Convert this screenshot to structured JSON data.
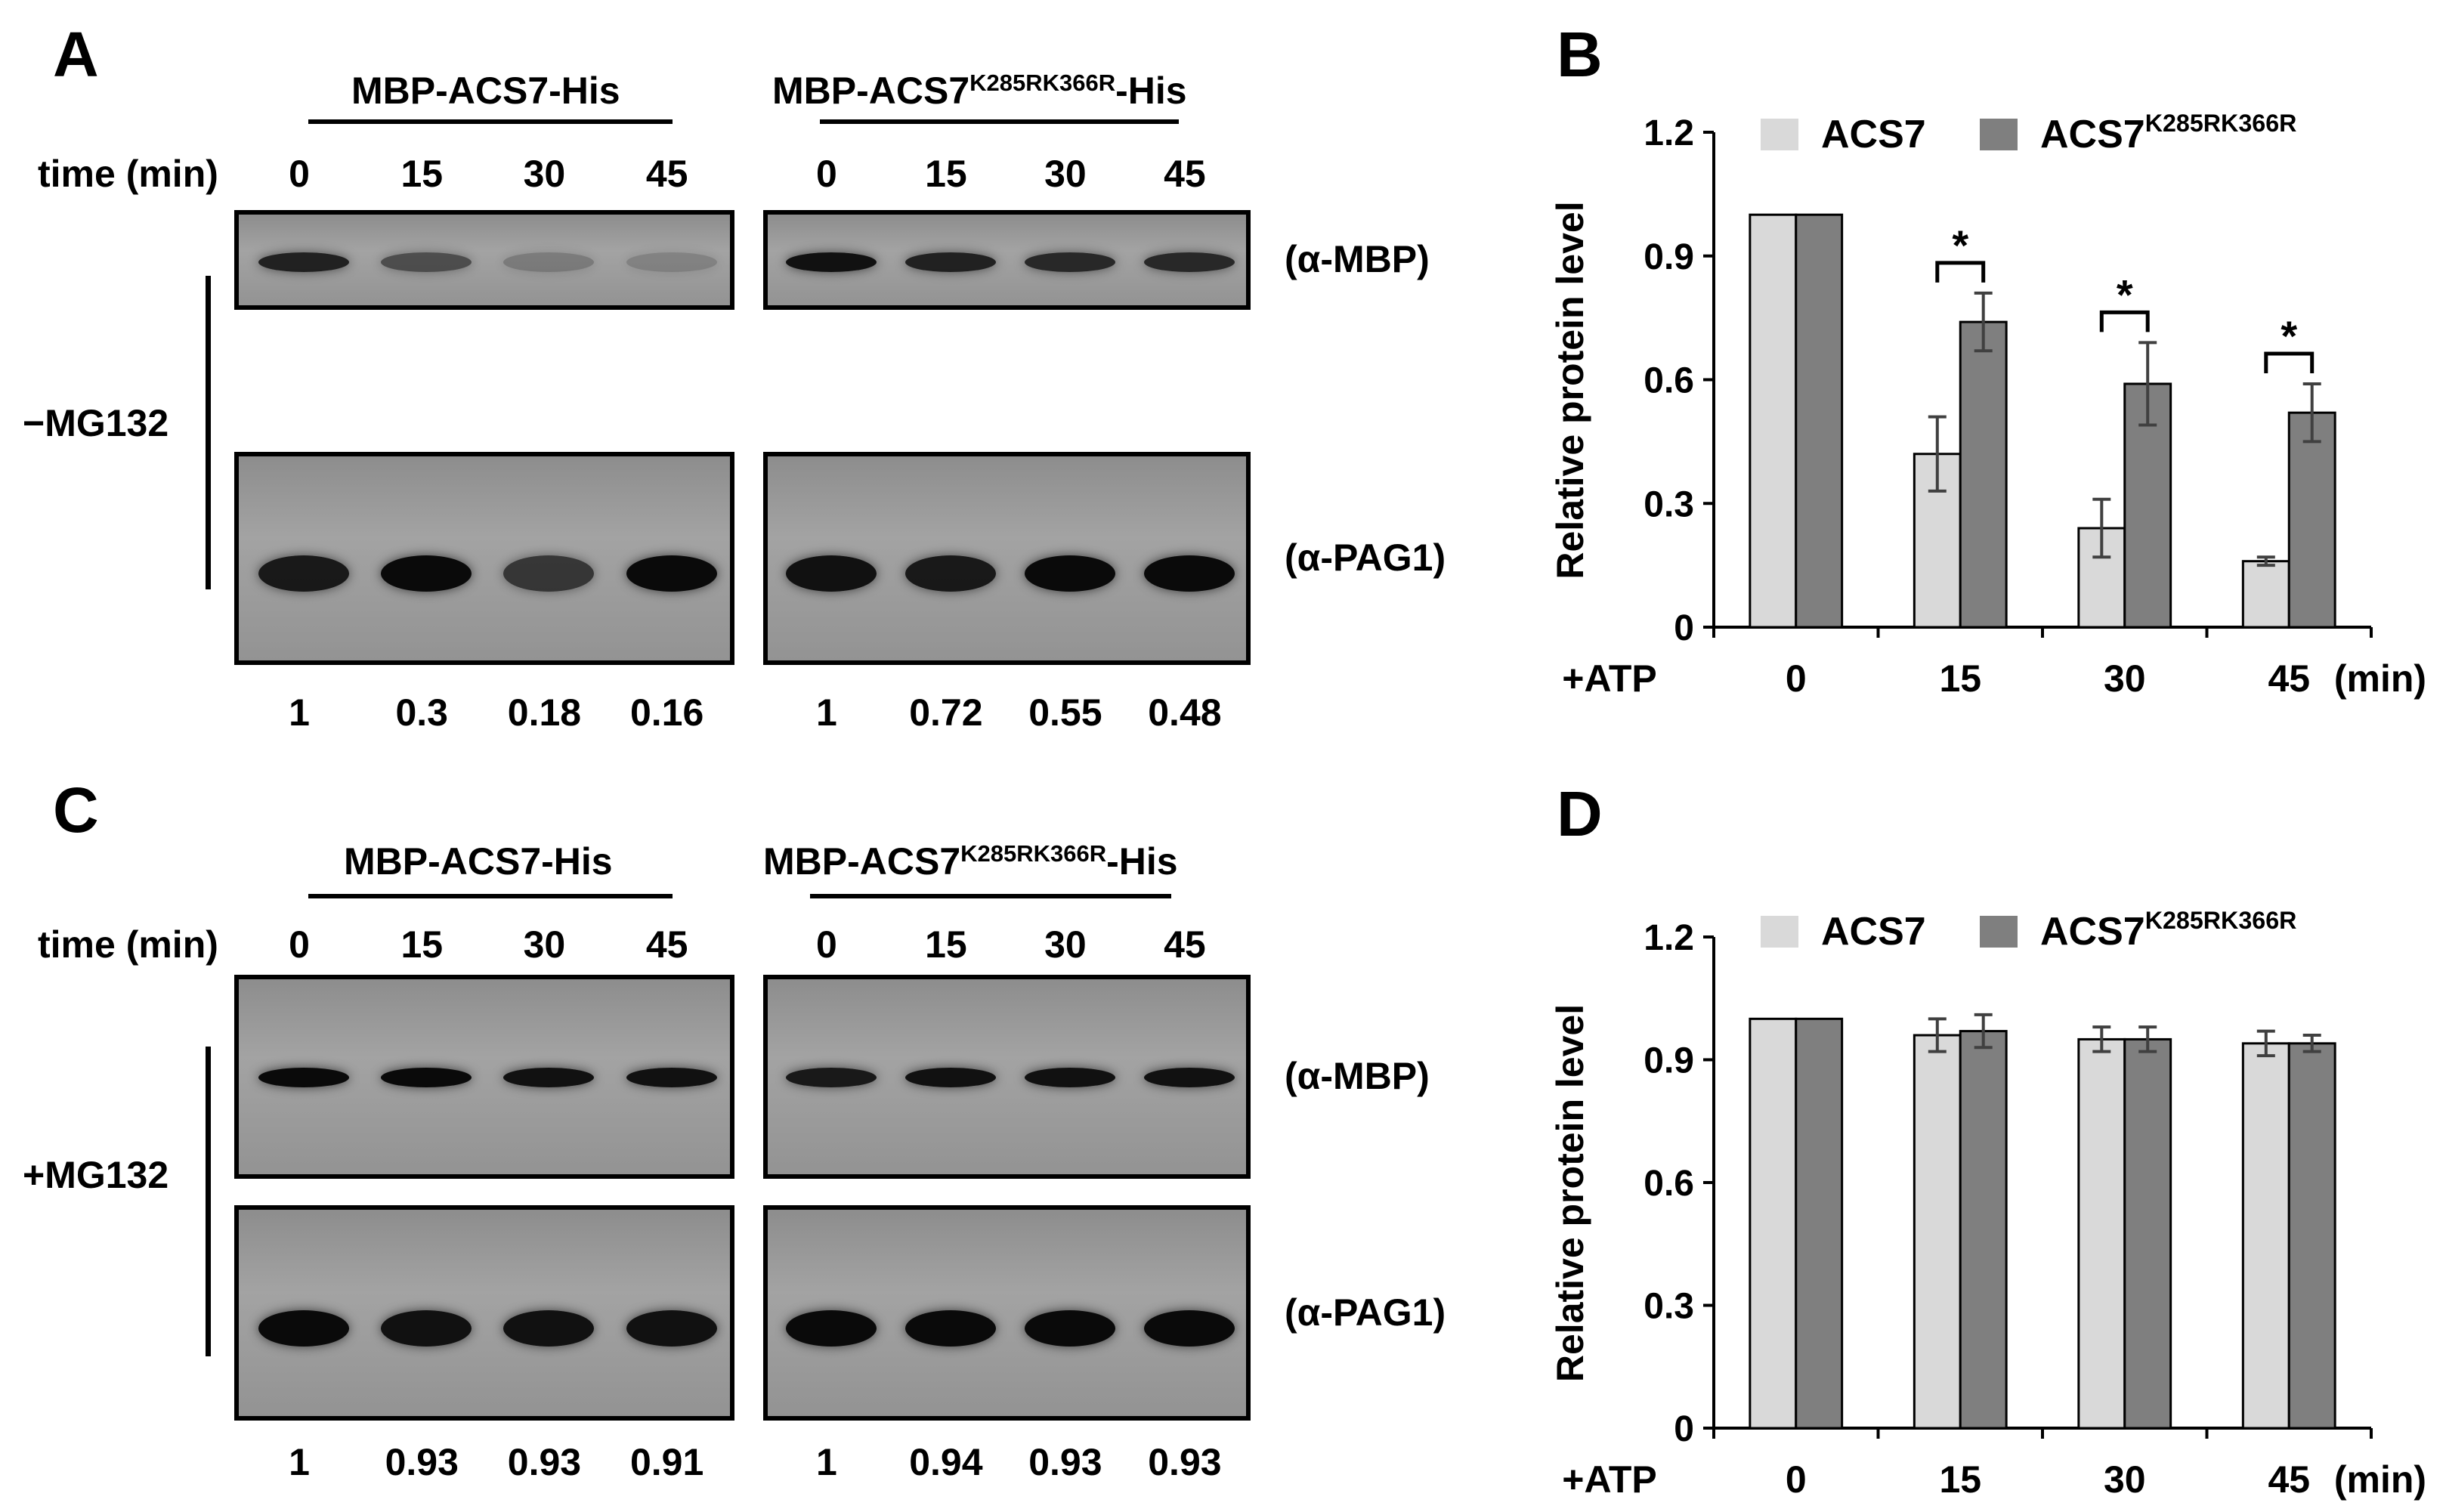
{
  "panels": {
    "A": "A",
    "B": "B",
    "C": "C",
    "D": "D"
  },
  "blots": [
    {
      "treatment": "−MG132",
      "time_label": "time (min)",
      "times": [
        "0",
        "15",
        "30",
        "45"
      ],
      "groups": [
        {
          "title_main": "MBP-ACS7",
          "title_sup": "",
          "title_end": "-His",
          "quant": [
            "1",
            "0.3",
            "0.18",
            "0.16"
          ],
          "mbp_intensity": [
            0.85,
            0.55,
            0.25,
            0.2
          ],
          "pag1_intensity": [
            0.9,
            1.0,
            0.7,
            1.0
          ]
        },
        {
          "title_main": "MBP-ACS7",
          "title_sup": "K285RK366R",
          "title_end": "-His",
          "quant": [
            "1",
            "0.72",
            "0.55",
            "0.48"
          ],
          "mbp_intensity": [
            0.95,
            0.85,
            0.8,
            0.8
          ],
          "pag1_intensity": [
            0.95,
            0.9,
            1.0,
            1.0
          ]
        }
      ],
      "antibodies": [
        "(α-MBP)",
        "(α-PAG1)"
      ]
    },
    {
      "treatment": "+MG132",
      "time_label": "time (min)",
      "times": [
        "0",
        "15",
        "30",
        "45"
      ],
      "groups": [
        {
          "title_main": "MBP-ACS7",
          "title_sup": "",
          "title_end": "-His",
          "quant": [
            "1",
            "0.93",
            "0.93",
            "0.91"
          ],
          "mbp_intensity": [
            1.0,
            1.0,
            0.95,
            0.95
          ],
          "pag1_intensity": [
            1.0,
            0.95,
            0.95,
            0.95
          ]
        },
        {
          "title_main": "MBP-ACS7",
          "title_sup": "K285RK366R",
          "title_end": "-His",
          "quant": [
            "1",
            "0.94",
            "0.93",
            "0.93"
          ],
          "mbp_intensity": [
            0.9,
            0.95,
            0.95,
            0.95
          ],
          "pag1_intensity": [
            1.0,
            1.0,
            1.0,
            1.0
          ]
        }
      ],
      "antibodies": [
        "(α-MBP)",
        "(α-PAG1)"
      ]
    }
  ],
  "chart_data": [
    {
      "type": "bar",
      "panel": "B",
      "categories": [
        "0",
        "15",
        "30",
        "45"
      ],
      "x_prefix": "+ATP",
      "x_unit": "(min)",
      "ylabel": "Relative protein level",
      "ylim": [
        0,
        1.2
      ],
      "yticks": [
        "0",
        "0.3",
        "0.6",
        "0.9",
        "1.2"
      ],
      "legend_position": "top",
      "series": [
        {
          "name": "ACS7",
          "name_sup": "",
          "color": "#d9d9d9",
          "values": [
            1.0,
            0.42,
            0.24,
            0.16
          ],
          "errors": [
            0,
            0.09,
            0.07,
            0.01
          ]
        },
        {
          "name": "ACS7",
          "name_sup": "K285RK366R",
          "color": "#7f7f7f",
          "values": [
            1.0,
            0.74,
            0.59,
            0.52
          ],
          "errors": [
            0,
            0.07,
            0.1,
            0.07
          ]
        }
      ],
      "significance": [
        "",
        "*",
        "*",
        "*"
      ]
    },
    {
      "type": "bar",
      "panel": "D",
      "categories": [
        "0",
        "15",
        "30",
        "45"
      ],
      "x_prefix": "+ATP",
      "x_unit": "(min)",
      "ylabel": "Relative protein level",
      "ylim": [
        0,
        1.2
      ],
      "yticks": [
        "0",
        "0.3",
        "0.6",
        "0.9",
        "1.2"
      ],
      "legend_position": "top",
      "series": [
        {
          "name": "ACS7",
          "name_sup": "",
          "color": "#d9d9d9",
          "values": [
            1.0,
            0.96,
            0.95,
            0.94
          ],
          "errors": [
            0,
            0.04,
            0.03,
            0.03
          ]
        },
        {
          "name": "ACS7",
          "name_sup": "K285RK366R",
          "color": "#7f7f7f",
          "values": [
            1.0,
            0.97,
            0.95,
            0.94
          ],
          "errors": [
            0,
            0.04,
            0.03,
            0.02
          ]
        }
      ],
      "significance": [
        "",
        "",
        "",
        ""
      ]
    }
  ]
}
